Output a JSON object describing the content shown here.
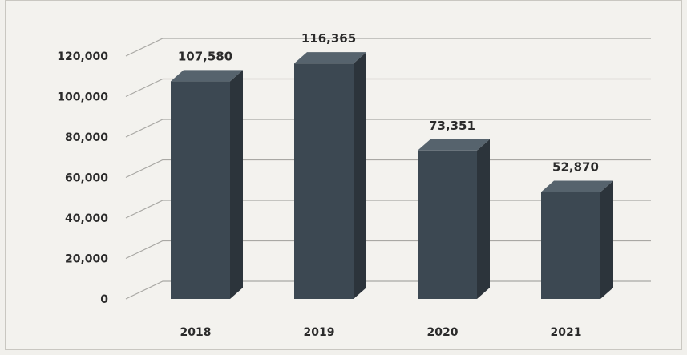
{
  "chart_data": {
    "type": "bar",
    "categories": [
      "2018",
      "2019",
      "2020",
      "2021"
    ],
    "values": [
      107580,
      116365,
      73351,
      52870
    ],
    "data_labels": [
      "107,580",
      "116,365",
      "73,351",
      "52,870"
    ],
    "y_ticks": [
      0,
      20000,
      40000,
      60000,
      80000,
      100000,
      120000
    ],
    "y_tick_labels": [
      "0",
      "20,000",
      "40,000",
      "60,000",
      "80,000",
      "100,000",
      "120,000"
    ],
    "ylim": [
      0,
      130000
    ],
    "grid": true,
    "legend": "none",
    "colors": {
      "bar_front": "#3c4852",
      "bar_side": "#2c343b",
      "bar_top": "#56636d",
      "grid": "#a9a8a4",
      "text": "#2b2b2b"
    }
  }
}
